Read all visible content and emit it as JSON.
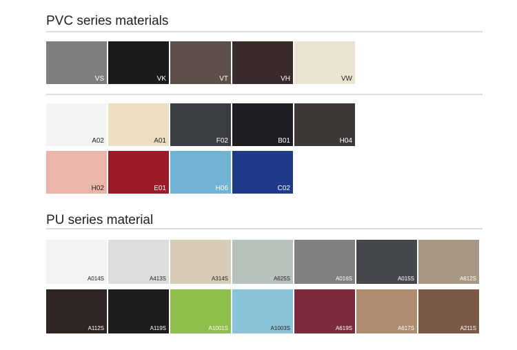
{
  "sections": [
    {
      "title": "PVC series materials",
      "rows": [
        [
          {
            "label": "VS",
            "color": "#7e7f7d"
          },
          {
            "label": "VK",
            "color": "#1b1b1b"
          },
          {
            "label": "VT",
            "color": "#5d5048"
          },
          {
            "label": "VH",
            "color": "#3a2b2b"
          },
          {
            "label": "VW",
            "color": "#e9e3d0"
          }
        ],
        [
          {
            "label": "A02",
            "color": "#f4f4f4"
          },
          {
            "label": "A01",
            "color": "#ecdfc1"
          },
          {
            "label": "F02",
            "color": "#3a3d42"
          },
          {
            "label": "B01",
            "color": "#1d1e21"
          },
          {
            "label": "H04",
            "color": "#3c3937"
          }
        ],
        [
          {
            "label": "H02",
            "color": "#e9b6a9"
          },
          {
            "label": "E01",
            "color": "#9b1b2b"
          },
          {
            "label": "H06",
            "color": "#70b3d3"
          },
          {
            "label": "C02",
            "color": "#203b8a"
          }
        ]
      ]
    },
    {
      "title": "PU series material",
      "rows": [
        [
          {
            "label": "A014S",
            "color": "#f3f3f3"
          },
          {
            "label": "A413S",
            "color": "#dcdedb"
          },
          {
            "label": "A314S",
            "color": "#d6cbb4"
          },
          {
            "label": "A625S",
            "color": "#b8c1ba"
          },
          {
            "label": "A016S",
            "color": "#80807e"
          },
          {
            "label": "A015S",
            "color": "#45494c"
          },
          {
            "label": "A612S",
            "color": "#a89785"
          }
        ],
        [
          {
            "label": "A112S",
            "color": "#2f2522"
          },
          {
            "label": "A119S",
            "color": "#1c1c1c"
          },
          {
            "label": "A1001S",
            "color": "#8cbf4b"
          },
          {
            "label": "A1003S",
            "color": "#89c4d8"
          },
          {
            "label": "A619S",
            "color": "#7b2b3b"
          },
          {
            "label": "A617S",
            "color": "#b08c6f"
          },
          {
            "label": "A211S",
            "color": "#7c5b46"
          }
        ]
      ]
    }
  ]
}
